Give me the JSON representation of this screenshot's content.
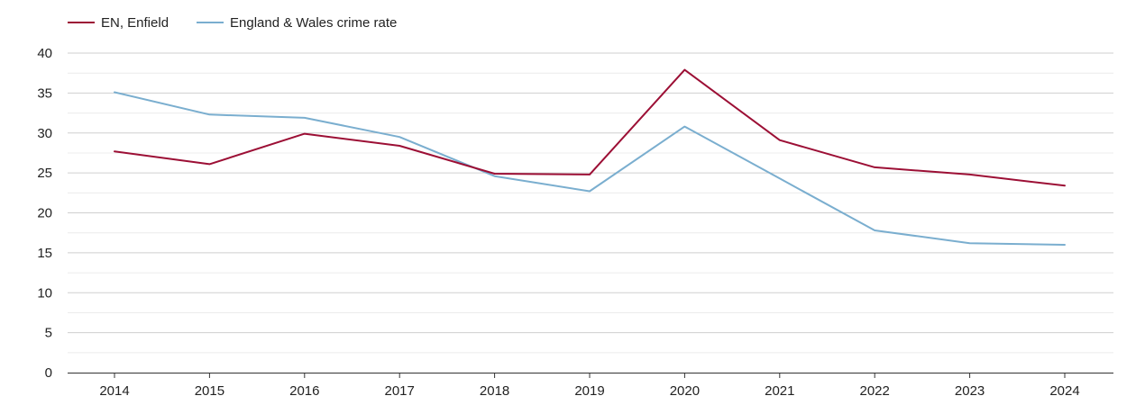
{
  "chart_data": {
    "type": "line",
    "title": "",
    "xlabel": "",
    "ylabel": "",
    "ylim": [
      0,
      40
    ],
    "y_ticks": [
      0,
      5,
      10,
      15,
      20,
      25,
      30,
      35,
      40
    ],
    "grid": true,
    "legend_position": "top-left",
    "categories": [
      "2014",
      "2015",
      "2016",
      "2017",
      "2018",
      "2019",
      "2020",
      "2021",
      "2022",
      "2023",
      "2024"
    ],
    "series": [
      {
        "name": "EN, Enfield",
        "color": "#9c0f35",
        "values": [
          27.7,
          26.1,
          29.9,
          28.4,
          24.9,
          24.8,
          37.9,
          29.1,
          25.7,
          24.8,
          23.4
        ]
      },
      {
        "name": "England & Wales crime rate",
        "color": "#7aaecf",
        "values": [
          35.1,
          32.3,
          31.9,
          29.5,
          24.6,
          22.7,
          30.8,
          24.3,
          17.8,
          16.2,
          16.0
        ]
      }
    ]
  }
}
